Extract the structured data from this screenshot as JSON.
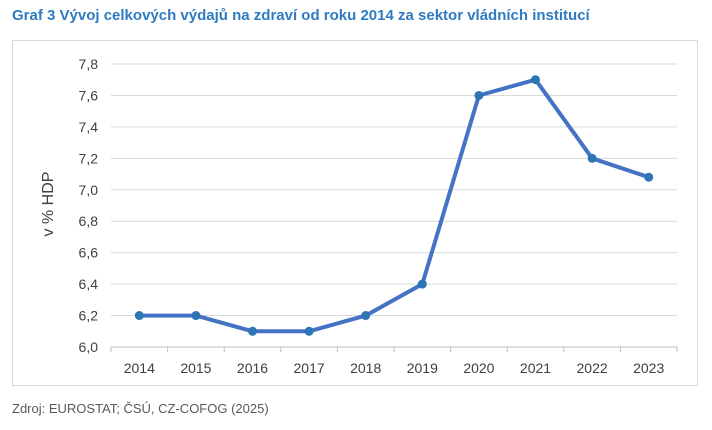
{
  "header": {
    "title": "Graf 3 Vývoj celkových výdajů na zdraví od roku 2014 za sektor vládních institucí"
  },
  "footer": {
    "source": "Zdroj: EUROSTAT; ČSÚ, CZ-COFOG (2025)"
  },
  "colors": {
    "title": "#2f7bc1",
    "line": "#4472c4",
    "marker": "#2e75b6",
    "grid": "#d9d9d9"
  },
  "chart_data": {
    "type": "line",
    "title": "Graf 3 Vývoj celkových výdajů na zdraví od roku 2014 za sektor vládních institucí",
    "xlabel": "",
    "ylabel": "v % HDP",
    "categories": [
      "2014",
      "2015",
      "2016",
      "2017",
      "2018",
      "2019",
      "2020",
      "2021",
      "2022",
      "2023"
    ],
    "series": [
      {
        "values": [
          6.2,
          6.2,
          6.1,
          6.1,
          6.2,
          6.4,
          7.6,
          7.7,
          7.2,
          7.08
        ]
      }
    ],
    "ylim": [
      6.0,
      7.8
    ],
    "yticks": [
      "6,0",
      "6,2",
      "6,4",
      "6,6",
      "6,8",
      "7,0",
      "7,2",
      "7,4",
      "7,6",
      "7,8"
    ],
    "grid": true,
    "legend": "none"
  }
}
